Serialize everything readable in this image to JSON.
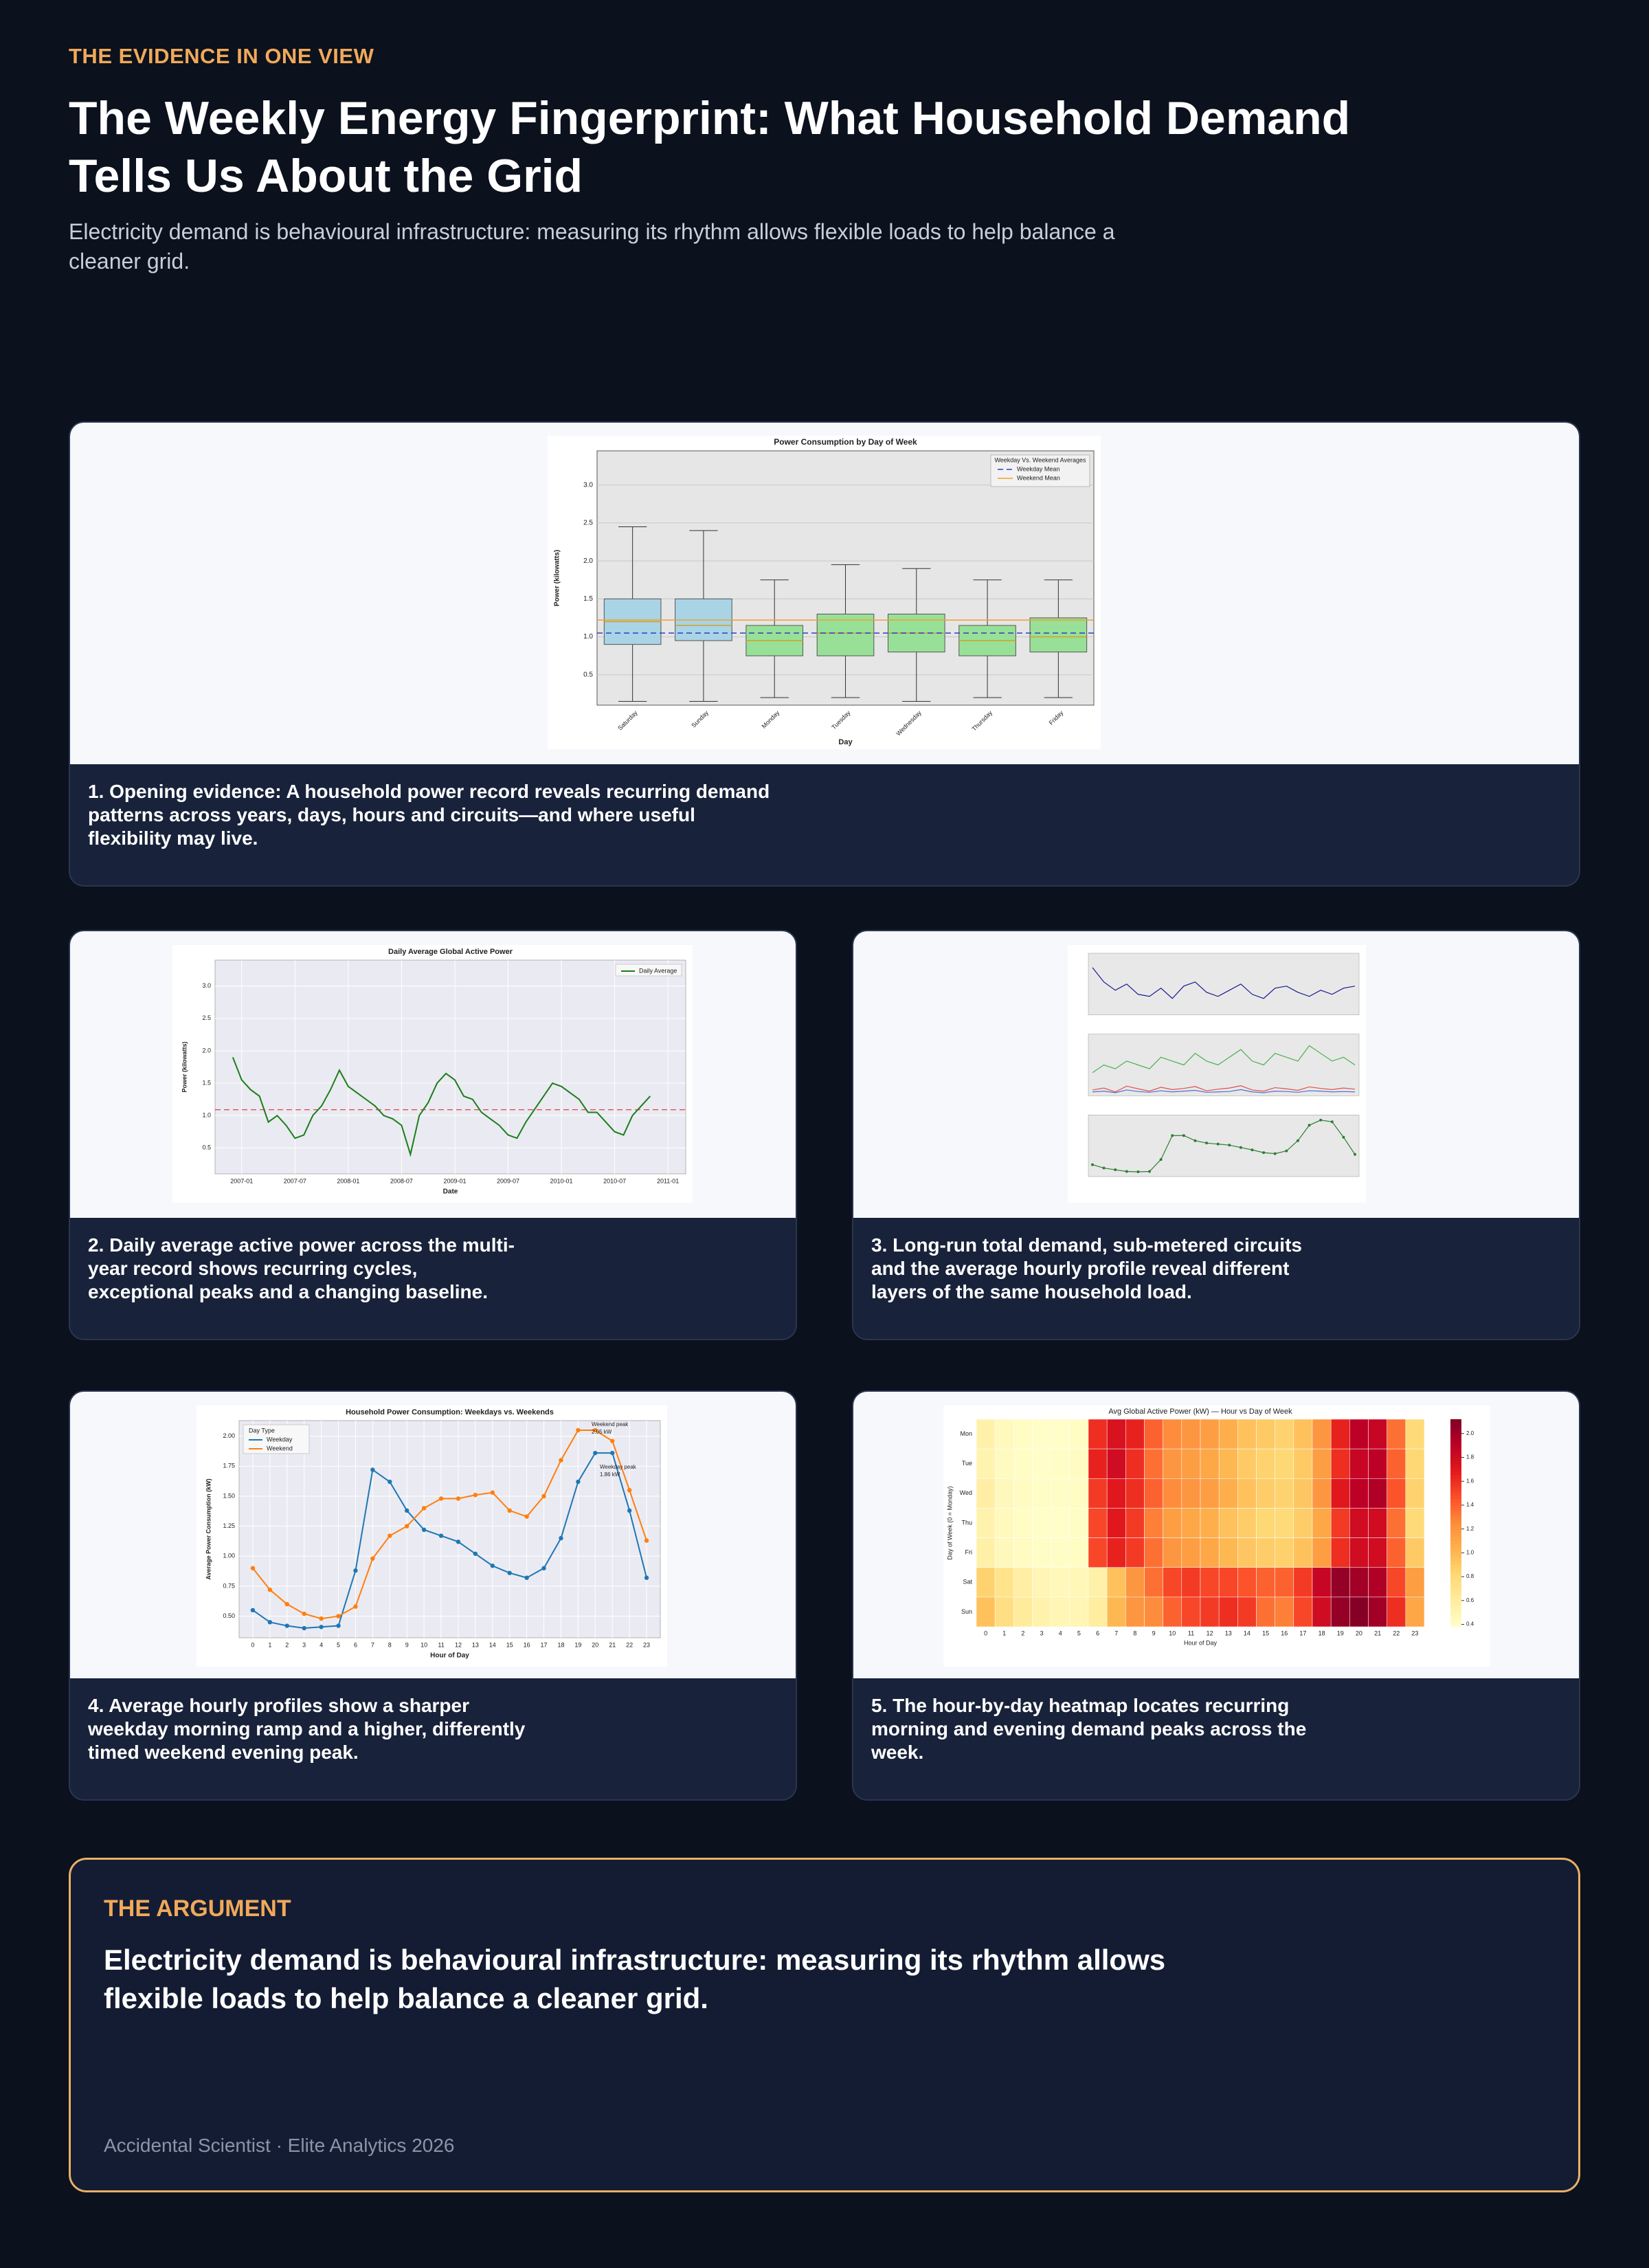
{
  "header": {
    "eyebrow": "THE EVIDENCE IN ONE VIEW",
    "title": "The Weekly Energy Fingerprint: What Household Demand Tells Us About the Grid",
    "subtitle": "Electricity demand is behavioural infrastructure: measuring its rhythm allows flexible loads to help balance a cleaner grid."
  },
  "panels": [
    {
      "caption": "1. Opening evidence: A household power record reveals recurring demand patterns across years, days, hours and circuits—and where useful flexibility may live."
    },
    {
      "caption": "2. Daily average active power across the multi-year record shows recurring cycles, exceptional peaks and a changing baseline."
    },
    {
      "caption": "3. Long-run total demand, sub-metered circuits and the average hourly profile reveal different layers of the same household load."
    },
    {
      "caption": "4. Average hourly profiles show a sharper weekday morning ramp and a higher, differently timed weekend evening peak."
    },
    {
      "caption": "5. The hour-by-day heatmap locates recurring morning and evening demand peaks across the week."
    }
  ],
  "chart_data": [
    {
      "type": "box",
      "title": "Power Consumption by Day of Week",
      "xlabel": "Day",
      "ylabel": "Power (kilowatts)",
      "categories": [
        "Saturday",
        "Sunday",
        "Monday",
        "Tuesday",
        "Wednesday",
        "Thursday",
        "Friday"
      ],
      "boxes": [
        {
          "whislo": 0.15,
          "q1": 0.9,
          "med": 1.2,
          "q3": 1.5,
          "whishi": 2.45
        },
        {
          "whislo": 0.15,
          "q1": 0.95,
          "med": 1.15,
          "q3": 1.5,
          "whishi": 2.4
        },
        {
          "whislo": 0.2,
          "q1": 0.75,
          "med": 0.95,
          "q3": 1.15,
          "whishi": 1.75
        },
        {
          "whislo": 0.2,
          "q1": 0.75,
          "med": 1.05,
          "q3": 1.3,
          "whishi": 1.95
        },
        {
          "whislo": 0.15,
          "q1": 0.8,
          "med": 1.05,
          "q3": 1.3,
          "whishi": 1.9
        },
        {
          "whislo": 0.2,
          "q1": 0.75,
          "med": 0.95,
          "q3": 1.15,
          "whishi": 1.75
        },
        {
          "whislo": 0.2,
          "q1": 0.8,
          "med": 1.0,
          "q3": 1.25,
          "whishi": 1.75
        }
      ],
      "box_colors": [
        "#a8d4e6",
        "#a8d4e6",
        "#98e098",
        "#98e098",
        "#98e098",
        "#98e098",
        "#98e098"
      ],
      "reference_lines": [
        {
          "name": "Weekday Mean",
          "value": 1.05,
          "color": "#2a3fbf",
          "style": "dashed"
        },
        {
          "name": "Weekend Mean",
          "value": 1.22,
          "color": "#f0a030",
          "style": "solid"
        }
      ],
      "legend": {
        "title": "Weekday Vs. Weekend Averages",
        "position": "upper right"
      },
      "ylim": [
        0.1,
        3.45
      ],
      "yticks": [
        0.5,
        {
          "value": 1,
          "label": "1.0"
        },
        1.5,
        {
          "value": 2,
          "label": "2.0"
        },
        2.5,
        {
          "value": 3,
          "label": "3.0"
        }
      ],
      "grid": true
    },
    {
      "type": "line",
      "title": "Daily Average Global Active Power",
      "xlabel": "Date",
      "ylabel": "Power (kilowatts)",
      "x": [
        "2006-12",
        "2007-01",
        "2007-02",
        "2007-03",
        "2007-04",
        "2007-05",
        "2007-06",
        "2007-07",
        "2007-08",
        "2007-09",
        "2007-10",
        "2007-11",
        "2007-12",
        "2008-01",
        "2008-02",
        "2008-03",
        "2008-04",
        "2008-05",
        "2008-06",
        "2008-07",
        "2008-08",
        "2008-09",
        "2008-10",
        "2008-11",
        "2008-12",
        "2009-01",
        "2009-02",
        "2009-03",
        "2009-04",
        "2009-05",
        "2009-06",
        "2009-07",
        "2009-08",
        "2009-09",
        "2009-10",
        "2009-11",
        "2009-12",
        "2010-01",
        "2010-02",
        "2010-03",
        "2010-04",
        "2010-05",
        "2010-06",
        "2010-07",
        "2010-08",
        "2010-09",
        "2010-10",
        "2010-11"
      ],
      "series": [
        {
          "name": "Daily Average",
          "color": "#1a7f1a",
          "values": [
            1.9,
            1.55,
            1.4,
            1.3,
            0.9,
            1.0,
            0.85,
            0.65,
            0.7,
            1.0,
            1.15,
            1.4,
            1.7,
            1.45,
            1.35,
            1.25,
            1.15,
            1.0,
            0.95,
            0.85,
            0.4,
            1.0,
            1.2,
            1.5,
            1.65,
            1.55,
            1.3,
            1.25,
            1.05,
            0.95,
            0.85,
            0.7,
            0.65,
            0.9,
            1.1,
            1.3,
            1.5,
            1.45,
            1.35,
            1.25,
            1.05,
            1.05,
            0.9,
            0.75,
            0.7,
            1.0,
            1.15,
            1.3
          ]
        }
      ],
      "reference_lines": [
        {
          "value": 1.09,
          "color": "#e03030",
          "style": "dashed"
        }
      ],
      "legend": {
        "position": "upper right"
      },
      "xlim": [
        "2006-10",
        "2011-03"
      ],
      "xticks": [
        "2007-01",
        "2007-07",
        "2008-01",
        "2008-07",
        "2009-01",
        "2009-07",
        "2010-01",
        "2010-07",
        "2011-01"
      ],
      "ylim": [
        0.1,
        3.4
      ],
      "yticks": [
        0.5,
        {
          "value": 1,
          "label": "1.0"
        },
        1.5,
        {
          "value": 2,
          "label": "2.0"
        },
        2.5,
        {
          "value": 3,
          "label": "3.0"
        }
      ],
      "grid": true
    },
    {
      "type": "panels",
      "panels": [
        {
          "ylim": [
            0,
            3
          ],
          "series": [
            {
              "color": "#1a1a90",
              "values": [
                2.3,
                1.6,
                1.2,
                1.5,
                1.0,
                0.9,
                1.3,
                0.8,
                1.4,
                1.6,
                1.1,
                0.9,
                1.2,
                1.5,
                1.0,
                0.8,
                1.3,
                1.4,
                1.1,
                0.9,
                1.2,
                1.0,
                1.3,
                1.4
              ]
            }
          ]
        },
        {
          "ylim": [
            0,
            16
          ],
          "series": [
            {
              "color": "#4caf50",
              "values": [
                6,
                8,
                7,
                9,
                8,
                7,
                10,
                9,
                8,
                11,
                9,
                8,
                10,
                12,
                9,
                8,
                11,
                10,
                9,
                13,
                11,
                9,
                10,
                8
              ]
            },
            {
              "color": "#e05050",
              "values": [
                1.5,
                2,
                1,
                2.5,
                1.8,
                1.2,
                2.2,
                1.6,
                1.9,
                2.4,
                1.3,
                1.7,
                2,
                2.6,
                1.5,
                1.2,
                2.1,
                1.8,
                1.4,
                2.3,
                1.9,
                1.6,
                2,
                1.7
              ]
            },
            {
              "color": "#5070d0",
              "values": [
                1,
                1.2,
                0.8,
                1.5,
                1.1,
                0.9,
                1.3,
                1,
                1.2,
                1.4,
                0.9,
                1,
                1.1,
                1.6,
                1,
                0.8,
                1.2,
                1.1,
                0.9,
                1.3,
                1.2,
                1,
                1.1,
                1
              ]
            }
          ]
        },
        {
          "ylim": [
            0.3,
            2.1
          ],
          "series": [
            {
              "color": "#2e7d32",
              "values": [
                0.65,
                0.55,
                0.5,
                0.45,
                0.44,
                0.45,
                0.8,
                1.5,
                1.5,
                1.35,
                1.28,
                1.25,
                1.22,
                1.15,
                1.08,
                1.0,
                0.97,
                1.05,
                1.35,
                1.8,
                1.95,
                1.9,
                1.45,
                0.95
              ]
            }
          ]
        }
      ]
    },
    {
      "type": "line",
      "title": "Household Power Consumption: Weekdays vs. Weekends",
      "xlabel": "Hour of Day",
      "ylabel": "Average Power Consumption (kW)",
      "x": [
        0,
        1,
        2,
        3,
        4,
        5,
        6,
        7,
        8,
        9,
        10,
        11,
        12,
        13,
        14,
        15,
        16,
        17,
        18,
        19,
        20,
        21,
        22,
        23
      ],
      "series": [
        {
          "name": "Weekday",
          "color": "#1f77b4",
          "values": [
            0.55,
            0.45,
            0.42,
            0.4,
            0.41,
            0.42,
            0.88,
            1.72,
            1.62,
            1.38,
            1.22,
            1.17,
            1.12,
            1.02,
            0.92,
            0.86,
            0.82,
            0.9,
            1.15,
            1.62,
            1.86,
            1.86,
            1.38,
            0.82
          ]
        },
        {
          "name": "Weekend",
          "color": "#ff7f0e",
          "values": [
            0.9,
            0.72,
            0.6,
            0.52,
            0.48,
            0.5,
            0.58,
            0.98,
            1.17,
            1.25,
            1.4,
            1.48,
            1.48,
            1.51,
            1.53,
            1.38,
            1.33,
            1.5,
            1.8,
            2.05,
            2.05,
            1.96,
            1.55,
            1.13
          ]
        }
      ],
      "annotations": [
        [
          "Weekend peak",
          "2.05 kW"
        ],
        [
          "Weekday peak",
          "1.86 kW"
        ]
      ],
      "legend": {
        "title": "Day Type",
        "position": "upper left"
      },
      "xlim": [
        -0.8,
        23.8
      ],
      "xticks": [
        0,
        1,
        2,
        3,
        4,
        5,
        6,
        7,
        8,
        9,
        10,
        11,
        12,
        13,
        14,
        15,
        16,
        17,
        18,
        19,
        20,
        21,
        22,
        23
      ],
      "ylim": [
        0.32,
        2.13
      ],
      "yticks": [
        {
          "value": 0.5,
          "label": "0.50"
        },
        0.75,
        {
          "value": 1,
          "label": "1.00"
        },
        1.25,
        {
          "value": 1.5,
          "label": "1.50"
        },
        1.75,
        {
          "value": 2,
          "label": "2.00"
        }
      ],
      "grid": true
    },
    {
      "type": "heatmap",
      "title": "Avg Global Active Power (kW) — Hour vs Day of Week",
      "xlabel": "Hour of Day",
      "ylabel": "Day of Week (0 = Monday)",
      "x": [
        0,
        1,
        2,
        3,
        4,
        5,
        6,
        7,
        8,
        9,
        10,
        11,
        12,
        13,
        14,
        15,
        16,
        17,
        18,
        19,
        20,
        21,
        22,
        23
      ],
      "rows": [
        "Mon",
        "Tue",
        "Wed",
        "Thu",
        "Fri",
        "Sat",
        "Sun"
      ],
      "values": [
        [
          0.55,
          0.45,
          0.42,
          0.4,
          0.4,
          0.42,
          1.6,
          1.75,
          1.65,
          1.4,
          1.25,
          1.2,
          1.15,
          1.05,
          0.95,
          0.9,
          0.85,
          0.95,
          1.2,
          1.65,
          1.9,
          1.85,
          1.35,
          0.8
        ],
        [
          0.52,
          0.44,
          0.41,
          0.4,
          0.41,
          0.43,
          1.65,
          1.8,
          1.6,
          1.35,
          1.2,
          1.15,
          1.1,
          1.0,
          0.9,
          0.85,
          0.82,
          0.9,
          1.15,
          1.6,
          1.85,
          1.9,
          1.4,
          0.82
        ],
        [
          0.58,
          0.46,
          0.43,
          0.41,
          0.41,
          0.42,
          1.55,
          1.7,
          1.6,
          1.4,
          1.25,
          1.2,
          1.15,
          1.05,
          0.95,
          0.88,
          0.85,
          0.92,
          1.2,
          1.7,
          1.9,
          1.95,
          1.45,
          0.85
        ],
        [
          0.54,
          0.45,
          0.42,
          0.4,
          0.4,
          0.41,
          1.5,
          1.7,
          1.55,
          1.3,
          1.15,
          1.1,
          1.05,
          0.95,
          0.88,
          0.82,
          0.8,
          0.88,
          1.1,
          1.55,
          1.8,
          1.8,
          1.35,
          0.8
        ],
        [
          0.56,
          0.46,
          0.43,
          0.41,
          0.41,
          0.42,
          1.5,
          1.65,
          1.55,
          1.35,
          1.2,
          1.15,
          1.1,
          1.0,
          0.92,
          0.88,
          0.86,
          0.95,
          1.15,
          1.6,
          1.8,
          1.8,
          1.4,
          0.9
        ],
        [
          0.85,
          0.7,
          0.58,
          0.5,
          0.47,
          0.48,
          0.55,
          0.95,
          1.2,
          1.35,
          1.5,
          1.55,
          1.5,
          1.5,
          1.45,
          1.4,
          1.4,
          1.55,
          1.85,
          2.05,
          2.0,
          1.95,
          1.5,
          1.15
        ],
        [
          0.95,
          0.75,
          0.62,
          0.54,
          0.5,
          0.5,
          0.6,
          1.0,
          1.2,
          1.25,
          1.4,
          1.5,
          1.55,
          1.6,
          1.55,
          1.35,
          1.3,
          1.5,
          1.8,
          2.05,
          2.1,
          2.0,
          1.6,
          1.1
        ]
      ],
      "colormap": [
        "#ffffcc",
        "#ffeda0",
        "#fed976",
        "#feb24c",
        "#fd8d3c",
        "#fc4e2a",
        "#e31a1c",
        "#bd0026",
        "#800026"
      ],
      "clim": [
        0.38,
        2.12
      ],
      "cticks": [
        0.4,
        0.6,
        0.8,
        {
          "value": 1,
          "label": "1.0"
        },
        1.2,
        1.4,
        1.6,
        1.8,
        {
          "value": 2,
          "label": "2.0"
        }
      ]
    }
  ],
  "argument": {
    "label": "THE ARGUMENT",
    "text": "Electricity demand is behavioural infrastructure: measuring its rhythm allows flexible loads to help balance a cleaner grid.",
    "footer": "Accidental Scientist · Elite Analytics 2026"
  }
}
